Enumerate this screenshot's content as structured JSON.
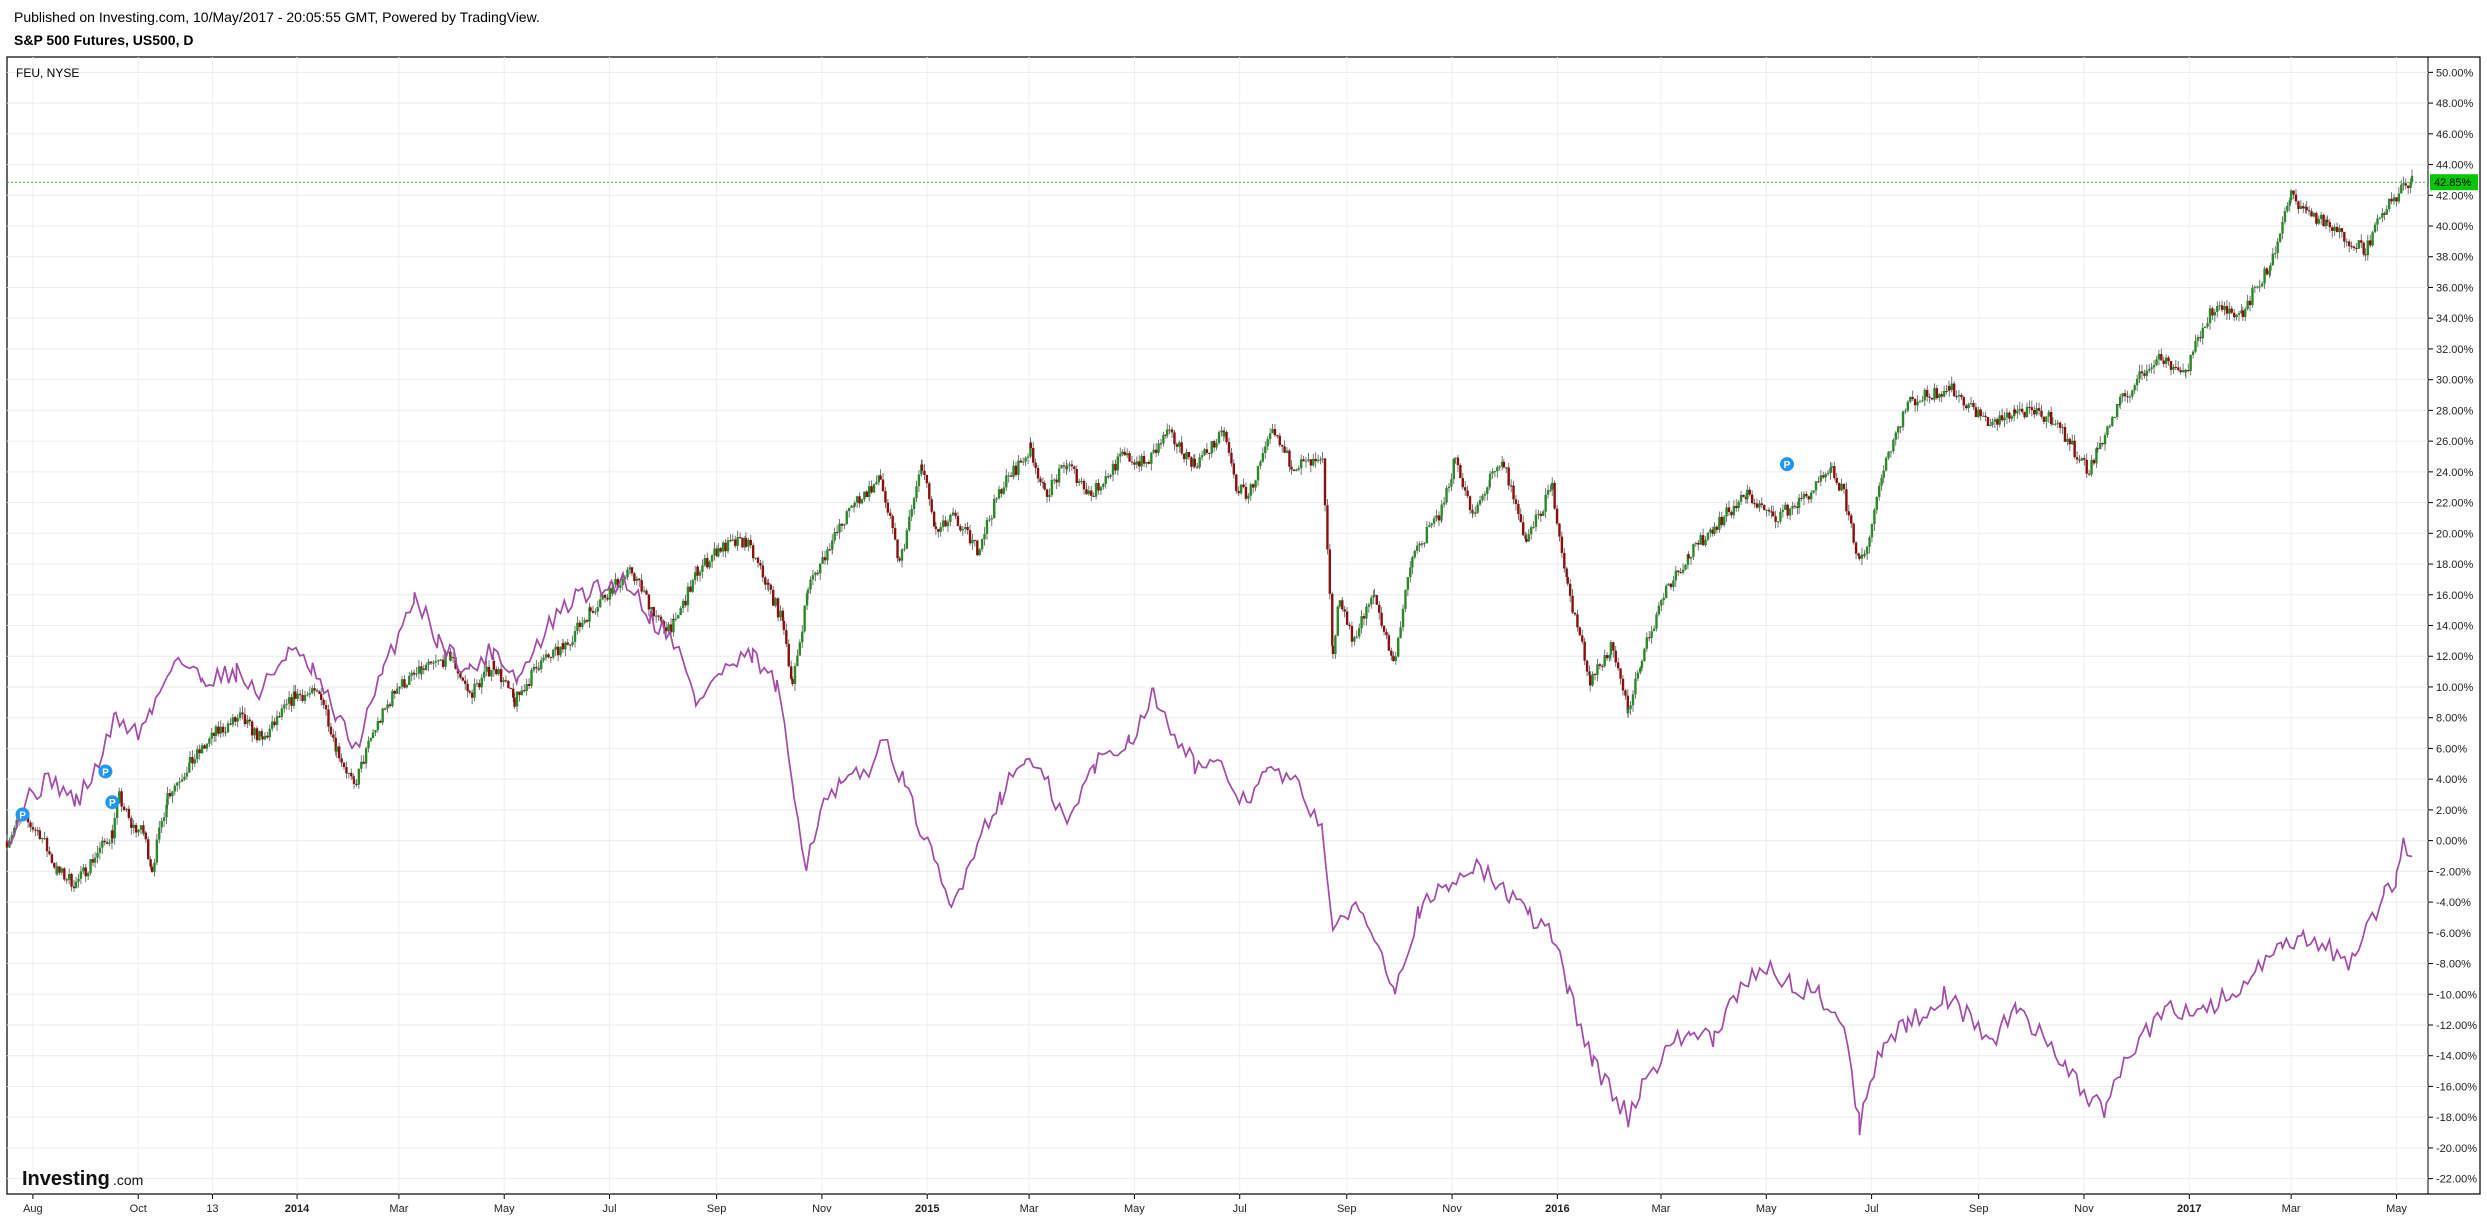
{
  "header": {
    "published": "Published on Investing.com, 10/May/2017 - 20:05:55 GMT, Powered by TradingView.",
    "title": "S&P 500 Futures, US500, D"
  },
  "chart_data": {
    "type": "line",
    "series_label": "FEU, NYSE",
    "logo": {
      "main": "Investing",
      "suffix": ".com"
    },
    "yaxis": {
      "min": -23,
      "max": 51,
      "step": 2,
      "tick_labels": [
        "50.00%",
        "48.00%",
        "46.00%",
        "44.00%",
        "42.00%",
        "40.00%",
        "38.00%",
        "36.00%",
        "34.00%",
        "32.00%",
        "30.00%",
        "28.00%",
        "26.00%",
        "24.00%",
        "22.00%",
        "20.00%",
        "18.00%",
        "16.00%",
        "14.00%",
        "12.00%",
        "10.00%",
        "8.00%",
        "6.00%",
        "4.00%",
        "2.00%",
        "0.00%",
        "-2.00%",
        "-4.00%",
        "-6.00%",
        "-8.00%",
        "-10.00%",
        "-12.00%",
        "-14.00%",
        "-16.00%",
        "-18.00%",
        "-20.00%",
        "-22.00%"
      ]
    },
    "xaxis": {
      "start": "2013-07-17",
      "end": "2017-05-10",
      "ticks": [
        {
          "date": "2013-08-01",
          "label": "Aug",
          "bold": false
        },
        {
          "date": "2013-10-01",
          "label": "Oct",
          "bold": false
        },
        {
          "date": "2013-11-13",
          "label": "13",
          "bold": false
        },
        {
          "date": "2014-01-01",
          "label": "2014",
          "bold": true
        },
        {
          "date": "2014-03-01",
          "label": "Mar",
          "bold": false
        },
        {
          "date": "2014-05-01",
          "label": "May",
          "bold": false
        },
        {
          "date": "2014-07-01",
          "label": "Jul",
          "bold": false
        },
        {
          "date": "2014-09-01",
          "label": "Sep",
          "bold": false
        },
        {
          "date": "2014-11-01",
          "label": "Nov",
          "bold": false
        },
        {
          "date": "2015-01-01",
          "label": "2015",
          "bold": true
        },
        {
          "date": "2015-03-01",
          "label": "Mar",
          "bold": false
        },
        {
          "date": "2015-05-01",
          "label": "May",
          "bold": false
        },
        {
          "date": "2015-07-01",
          "label": "Jul",
          "bold": false
        },
        {
          "date": "2015-09-01",
          "label": "Sep",
          "bold": false
        },
        {
          "date": "2015-11-01",
          "label": "Nov",
          "bold": false
        },
        {
          "date": "2016-01-01",
          "label": "2016",
          "bold": true
        },
        {
          "date": "2016-03-01",
          "label": "Mar",
          "bold": false
        },
        {
          "date": "2016-05-01",
          "label": "May",
          "bold": false
        },
        {
          "date": "2016-07-01",
          "label": "Jul",
          "bold": false
        },
        {
          "date": "2016-09-01",
          "label": "Sep",
          "bold": false
        },
        {
          "date": "2016-11-01",
          "label": "Nov",
          "bold": false
        },
        {
          "date": "2017-01-01",
          "label": "2017",
          "bold": true
        },
        {
          "date": "2017-03-01",
          "label": "Mar",
          "bold": false
        },
        {
          "date": "2017-05-01",
          "label": "May",
          "bold": false
        }
      ]
    },
    "last_value": {
      "value": 42.85,
      "label": "42.85%"
    },
    "grid": true,
    "colors": {
      "up": "#2a8a2a",
      "down": "#8a1010",
      "line": "#a24aa8",
      "badge": "#2196f3",
      "last_value_bg": "#00c800",
      "last_value_line": "#2fb82f"
    },
    "series": [
      {
        "style": "candles",
        "points": [
          [
            "2013-07-17",
            0.0
          ],
          [
            "2013-07-25",
            1.5
          ],
          [
            "2013-08-05",
            0.5
          ],
          [
            "2013-08-15",
            -2.0
          ],
          [
            "2013-08-26",
            -2.8
          ],
          [
            "2013-09-06",
            -1.0
          ],
          [
            "2013-09-16",
            0.5
          ],
          [
            "2013-09-20",
            2.8
          ],
          [
            "2013-09-27",
            1.0
          ],
          [
            "2013-10-04",
            0.5
          ],
          [
            "2013-10-09",
            -1.8
          ],
          [
            "2013-10-18",
            3.0
          ],
          [
            "2013-10-31",
            5.0
          ],
          [
            "2013-11-15",
            7.0
          ],
          [
            "2013-11-29",
            8.0
          ],
          [
            "2013-12-12",
            6.5
          ],
          [
            "2013-12-31",
            9.5
          ],
          [
            "2014-01-15",
            9.5
          ],
          [
            "2014-01-24",
            6.0
          ],
          [
            "2014-02-03",
            3.5
          ],
          [
            "2014-02-14",
            7.0
          ],
          [
            "2014-02-28",
            10.0
          ],
          [
            "2014-03-14",
            11.0
          ],
          [
            "2014-03-31",
            12.0
          ],
          [
            "2014-04-11",
            9.5
          ],
          [
            "2014-04-25",
            11.5
          ],
          [
            "2014-05-07",
            9.0
          ],
          [
            "2014-05-21",
            11.5
          ],
          [
            "2014-06-04",
            12.5
          ],
          [
            "2014-06-20",
            15.0
          ],
          [
            "2014-07-03",
            16.5
          ],
          [
            "2014-07-14",
            17.5
          ],
          [
            "2014-07-31",
            14.0
          ],
          [
            "2014-08-07",
            14.0
          ],
          [
            "2014-08-21",
            17.5
          ],
          [
            "2014-09-02",
            19.0
          ],
          [
            "2014-09-18",
            19.5
          ],
          [
            "2014-10-01",
            16.5
          ],
          [
            "2014-10-10",
            14.0
          ],
          [
            "2014-10-15",
            10.0
          ],
          [
            "2014-10-24",
            16.5
          ],
          [
            "2014-11-07",
            19.5
          ],
          [
            "2014-11-20",
            22.0
          ],
          [
            "2014-12-05",
            23.5
          ],
          [
            "2014-12-16",
            18.0
          ],
          [
            "2014-12-29",
            24.5
          ],
          [
            "2015-01-06",
            20.0
          ],
          [
            "2015-01-16",
            21.0
          ],
          [
            "2015-01-30",
            19.0
          ],
          [
            "2015-02-13",
            23.0
          ],
          [
            "2015-03-02",
            25.5
          ],
          [
            "2015-03-10",
            22.5
          ],
          [
            "2015-03-23",
            24.5
          ],
          [
            "2015-04-06",
            22.5
          ],
          [
            "2015-04-24",
            25.0
          ],
          [
            "2015-05-08",
            24.5
          ],
          [
            "2015-05-20",
            26.5
          ],
          [
            "2015-06-05",
            24.5
          ],
          [
            "2015-06-22",
            26.5
          ],
          [
            "2015-06-29",
            23.0
          ],
          [
            "2015-07-06",
            22.5
          ],
          [
            "2015-07-20",
            26.5
          ],
          [
            "2015-07-31",
            24.5
          ],
          [
            "2015-08-18",
            24.5
          ],
          [
            "2015-08-24",
            12.0
          ],
          [
            "2015-08-28",
            16.0
          ],
          [
            "2015-09-04",
            13.0
          ],
          [
            "2015-09-17",
            16.0
          ],
          [
            "2015-09-28",
            11.5
          ],
          [
            "2015-10-09",
            18.5
          ],
          [
            "2015-10-26",
            21.5
          ],
          [
            "2015-11-03",
            25.0
          ],
          [
            "2015-11-13",
            21.0
          ],
          [
            "2015-11-23",
            23.5
          ],
          [
            "2015-12-01",
            24.5
          ],
          [
            "2015-12-14",
            19.5
          ],
          [
            "2015-12-29",
            23.0
          ],
          [
            "2016-01-07",
            16.5
          ],
          [
            "2016-01-20",
            10.5
          ],
          [
            "2016-02-01",
            12.5
          ],
          [
            "2016-02-11",
            8.5
          ],
          [
            "2016-02-19",
            12.0
          ],
          [
            "2016-03-04",
            16.5
          ],
          [
            "2016-03-17",
            18.5
          ],
          [
            "2016-04-01",
            20.5
          ],
          [
            "2016-04-20",
            22.5
          ],
          [
            "2016-05-05",
            21.0
          ],
          [
            "2016-05-20",
            22.0
          ],
          [
            "2016-06-08",
            24.0
          ],
          [
            "2016-06-15",
            22.5
          ],
          [
            "2016-06-24",
            18.0
          ],
          [
            "2016-06-27",
            18.5
          ],
          [
            "2016-07-08",
            24.5
          ],
          [
            "2016-07-22",
            28.5
          ],
          [
            "2016-08-15",
            29.5
          ],
          [
            "2016-09-09",
            27.0
          ],
          [
            "2016-09-22",
            28.0
          ],
          [
            "2016-10-14",
            27.5
          ],
          [
            "2016-11-04",
            24.0
          ],
          [
            "2016-11-09",
            25.5
          ],
          [
            "2016-11-22",
            28.5
          ],
          [
            "2016-12-13",
            31.5
          ],
          [
            "2016-12-30",
            30.5
          ],
          [
            "2017-01-13",
            34.5
          ],
          [
            "2017-02-01",
            34.5
          ],
          [
            "2017-02-17",
            37.5
          ],
          [
            "2017-03-01",
            42.0
          ],
          [
            "2017-03-10",
            41.0
          ],
          [
            "2017-03-22",
            40.0
          ],
          [
            "2017-04-13",
            38.5
          ],
          [
            "2017-04-24",
            41.0
          ],
          [
            "2017-05-05",
            42.5
          ],
          [
            "2017-05-10",
            42.85
          ]
        ]
      },
      {
        "style": "line",
        "points": [
          [
            "2013-07-17",
            0.0
          ],
          [
            "2013-07-30",
            3.0
          ],
          [
            "2013-08-12",
            4.0
          ],
          [
            "2013-08-26",
            2.5
          ],
          [
            "2013-09-06",
            4.5
          ],
          [
            "2013-09-18",
            8.0
          ],
          [
            "2013-10-01",
            7.0
          ],
          [
            "2013-10-09",
            8.5
          ],
          [
            "2013-10-22",
            12.0
          ],
          [
            "2013-11-07",
            10.5
          ],
          [
            "2013-11-27",
            11.0
          ],
          [
            "2013-12-10",
            9.5
          ],
          [
            "2013-12-27",
            12.5
          ],
          [
            "2014-01-10",
            11.0
          ],
          [
            "2014-01-24",
            8.0
          ],
          [
            "2014-02-04",
            6.0
          ],
          [
            "2014-02-20",
            11.0
          ],
          [
            "2014-03-10",
            16.0
          ],
          [
            "2014-03-24",
            13.0
          ],
          [
            "2014-04-11",
            11.0
          ],
          [
            "2014-04-25",
            12.5
          ],
          [
            "2014-05-09",
            10.5
          ],
          [
            "2014-05-27",
            14.0
          ],
          [
            "2014-06-13",
            16.0
          ],
          [
            "2014-06-30",
            16.5
          ],
          [
            "2014-07-11",
            17.0
          ],
          [
            "2014-07-25",
            14.5
          ],
          [
            "2014-08-08",
            13.0
          ],
          [
            "2014-08-20",
            9.0
          ],
          [
            "2014-09-04",
            11.0
          ],
          [
            "2014-09-22",
            12.0
          ],
          [
            "2014-10-06",
            10.0
          ],
          [
            "2014-10-16",
            3.0
          ],
          [
            "2014-10-23",
            -1.5
          ],
          [
            "2014-10-31",
            2.0
          ],
          [
            "2014-11-12",
            3.5
          ],
          [
            "2014-11-26",
            4.5
          ],
          [
            "2014-12-09",
            6.5
          ],
          [
            "2014-12-19",
            3.5
          ],
          [
            "2015-01-05",
            -1.5
          ],
          [
            "2015-01-15",
            -4.5
          ],
          [
            "2015-01-30",
            0.0
          ],
          [
            "2015-02-13",
            3.0
          ],
          [
            "2015-02-27",
            5.5
          ],
          [
            "2015-03-12",
            3.5
          ],
          [
            "2015-03-23",
            1.0
          ],
          [
            "2015-04-08",
            5.0
          ],
          [
            "2015-04-28",
            6.5
          ],
          [
            "2015-05-12",
            9.5
          ],
          [
            "2015-05-22",
            7.5
          ],
          [
            "2015-06-05",
            5.0
          ],
          [
            "2015-06-22",
            4.5
          ],
          [
            "2015-07-03",
            2.5
          ],
          [
            "2015-07-17",
            4.5
          ],
          [
            "2015-07-31",
            4.0
          ],
          [
            "2015-08-18",
            1.0
          ],
          [
            "2015-08-24",
            -6.5
          ],
          [
            "2015-09-04",
            -4.0
          ],
          [
            "2015-09-17",
            -6.0
          ],
          [
            "2015-09-29",
            -9.5
          ],
          [
            "2015-10-13",
            -4.5
          ],
          [
            "2015-10-30",
            -3.0
          ],
          [
            "2015-11-13",
            -1.5
          ],
          [
            "2015-12-04",
            -3.5
          ],
          [
            "2015-12-16",
            -5.0
          ],
          [
            "2015-12-29",
            -6.0
          ],
          [
            "2016-01-08",
            -10.0
          ],
          [
            "2016-01-22",
            -14.5
          ],
          [
            "2016-02-11",
            -18.0
          ],
          [
            "2016-02-19",
            -16.0
          ],
          [
            "2016-03-04",
            -13.5
          ],
          [
            "2016-03-18",
            -12.5
          ],
          [
            "2016-04-01",
            -13.0
          ],
          [
            "2016-04-14",
            -10.0
          ],
          [
            "2016-04-29",
            -8.0
          ],
          [
            "2016-05-16",
            -9.5
          ],
          [
            "2016-06-01",
            -10.0
          ],
          [
            "2016-06-15",
            -12.0
          ],
          [
            "2016-06-24",
            -18.5
          ],
          [
            "2016-06-28",
            -16.5
          ],
          [
            "2016-07-08",
            -13.0
          ],
          [
            "2016-07-22",
            -12.0
          ],
          [
            "2016-08-12",
            -10.0
          ],
          [
            "2016-09-09",
            -13.0
          ],
          [
            "2016-09-23",
            -11.0
          ],
          [
            "2016-10-11",
            -13.0
          ],
          [
            "2016-10-21",
            -14.5
          ],
          [
            "2016-11-04",
            -17.0
          ],
          [
            "2016-11-14",
            -17.5
          ],
          [
            "2016-11-22",
            -15.0
          ],
          [
            "2016-12-07",
            -12.5
          ],
          [
            "2016-12-19",
            -11.0
          ],
          [
            "2017-01-09",
            -11.0
          ],
          [
            "2017-01-26",
            -10.0
          ],
          [
            "2017-02-10",
            -8.5
          ],
          [
            "2017-02-24",
            -7.0
          ],
          [
            "2017-03-08",
            -6.5
          ],
          [
            "2017-03-21",
            -7.0
          ],
          [
            "2017-04-07",
            -8.0
          ],
          [
            "2017-04-17",
            -5.0
          ],
          [
            "2017-04-24",
            -3.5
          ],
          [
            "2017-05-01",
            -2.5
          ],
          [
            "2017-05-05",
            0.0
          ],
          [
            "2017-05-10",
            -1.0
          ]
        ]
      }
    ],
    "markers": [
      {
        "date": "2013-07-26",
        "value": 1.7,
        "label": "P"
      },
      {
        "date": "2013-09-12",
        "value": 4.5,
        "label": "P"
      },
      {
        "date": "2013-09-16",
        "value": 2.5,
        "label": "P"
      },
      {
        "date": "2016-05-13",
        "value": 24.5,
        "label": "P"
      }
    ]
  }
}
